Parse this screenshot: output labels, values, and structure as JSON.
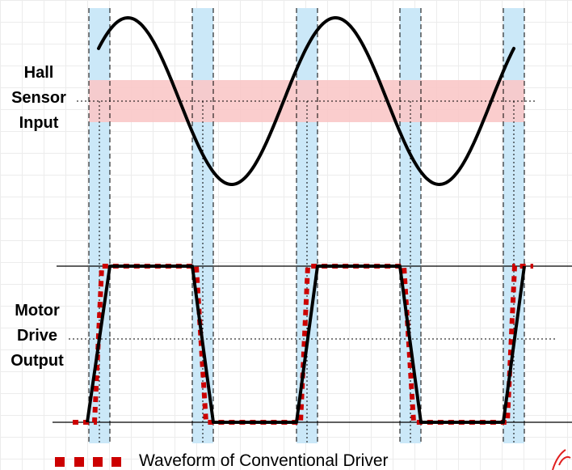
{
  "hall_label": [
    "Hall",
    "Sensor",
    "Input"
  ],
  "motor_label": [
    "Motor",
    "Drive",
    "Output"
  ],
  "legend": {
    "text": "Waveform of Conventional Driver",
    "marker_color": "#cc0000"
  },
  "colors": {
    "sine": "#000000",
    "threshold_band": "#f9c8c8",
    "transition_band": "#cbe8f8",
    "conventional": "#cc0000",
    "proposed": "#000000"
  }
}
